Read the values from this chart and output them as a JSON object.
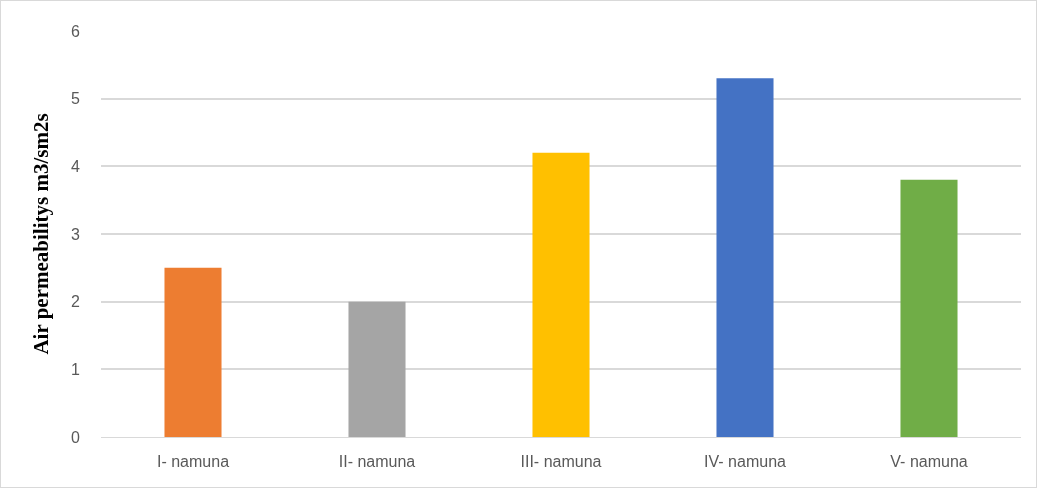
{
  "chart_data": {
    "type": "bar",
    "ylabel": "Air permeabilitys m3/sm2s",
    "categories": [
      "I- namuna",
      "II- namuna",
      "III- namuna",
      "IV- namuna",
      "V- namuna"
    ],
    "values": [
      2.5,
      2.0,
      4.2,
      5.3,
      3.8
    ],
    "colors": [
      "#ed7d31",
      "#a5a5a5",
      "#ffc000",
      "#4472c4",
      "#70ad47"
    ],
    "ylim": [
      0,
      6
    ],
    "yticks": [
      0,
      1,
      2,
      3,
      4,
      5,
      6
    ],
    "grid": "y"
  }
}
